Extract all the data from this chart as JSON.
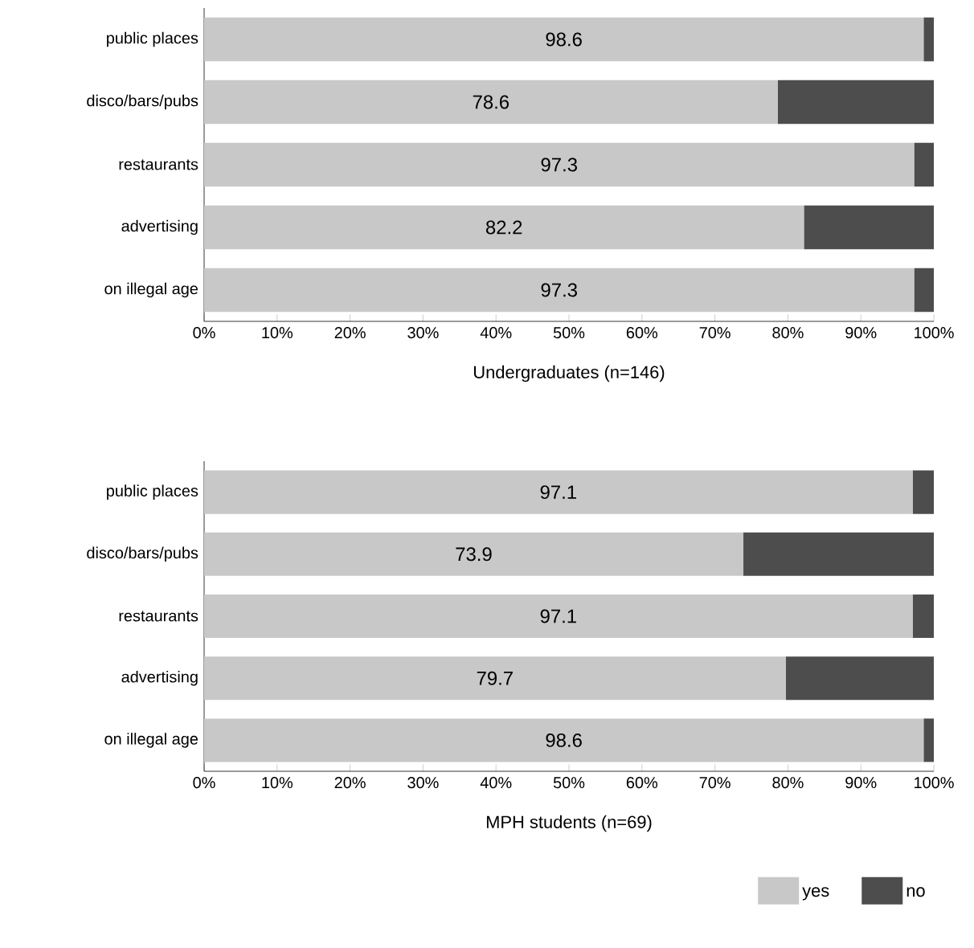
{
  "chart_data": [
    {
      "type": "bar",
      "orientation": "horizontal",
      "stacked": true,
      "xlabel": "Undergraduates (n=146)",
      "categories": [
        "public places",
        "disco/bars/pubs",
        "restaurants",
        "advertising",
        "on illegal age"
      ],
      "series": [
        {
          "color": "#c8c8c8",
          "values": [
            98.6,
            78.6,
            97.3,
            82.2,
            97.3
          ],
          "value_labels": [
            "98.6",
            "78.6",
            "97.3",
            "82.2",
            "97.3"
          ]
        },
        {
          "color": "#4d4d4d",
          "values": [
            1.4,
            21.4,
            2.7,
            17.8,
            2.7
          ]
        }
      ],
      "xlim": [
        0,
        100
      ],
      "xticks": [
        {
          "value": 0,
          "label": "0%"
        },
        {
          "value": 10,
          "label": "10%"
        },
        {
          "value": 20,
          "label": "20%"
        },
        {
          "value": 30,
          "label": "30%"
        },
        {
          "value": 40,
          "label": "40%"
        },
        {
          "value": 50,
          "label": "50%"
        },
        {
          "value": 60,
          "label": "60%"
        },
        {
          "value": 70,
          "label": "70%"
        },
        {
          "value": 80,
          "label": "80%"
        },
        {
          "value": 90,
          "label": "90%"
        },
        {
          "value": 100,
          "label": "100%"
        }
      ]
    },
    {
      "type": "bar",
      "orientation": "horizontal",
      "stacked": true,
      "xlabel": "MPH students (n=69)",
      "legend": "bottom right",
      "categories": [
        "public places",
        "disco/bars/pubs",
        "restaurants",
        "advertising",
        "on illegal age"
      ],
      "series": [
        {
          "name": "yes",
          "color": "#c8c8c8",
          "values": [
            97.1,
            73.9,
            97.1,
            79.7,
            98.6
          ],
          "value_labels": [
            "97.1",
            "73.9",
            "97.1",
            "79.7",
            "98.6"
          ]
        },
        {
          "name": "no",
          "color": "#4d4d4d",
          "values": [
            2.9,
            26.1,
            2.9,
            20.3,
            1.4
          ]
        }
      ],
      "xlim": [
        0,
        100
      ],
      "xticks": [
        {
          "value": 0,
          "label": "0%"
        },
        {
          "value": 10,
          "label": "10%"
        },
        {
          "value": 20,
          "label": "20%"
        },
        {
          "value": 30,
          "label": "30%"
        },
        {
          "value": 40,
          "label": "40%"
        },
        {
          "value": 50,
          "label": "50%"
        },
        {
          "value": 60,
          "label": "60%"
        },
        {
          "value": 70,
          "label": "70%"
        },
        {
          "value": 80,
          "label": "80%"
        },
        {
          "value": 90,
          "label": "90%"
        },
        {
          "value": 100,
          "label": "100%"
        }
      ]
    }
  ]
}
